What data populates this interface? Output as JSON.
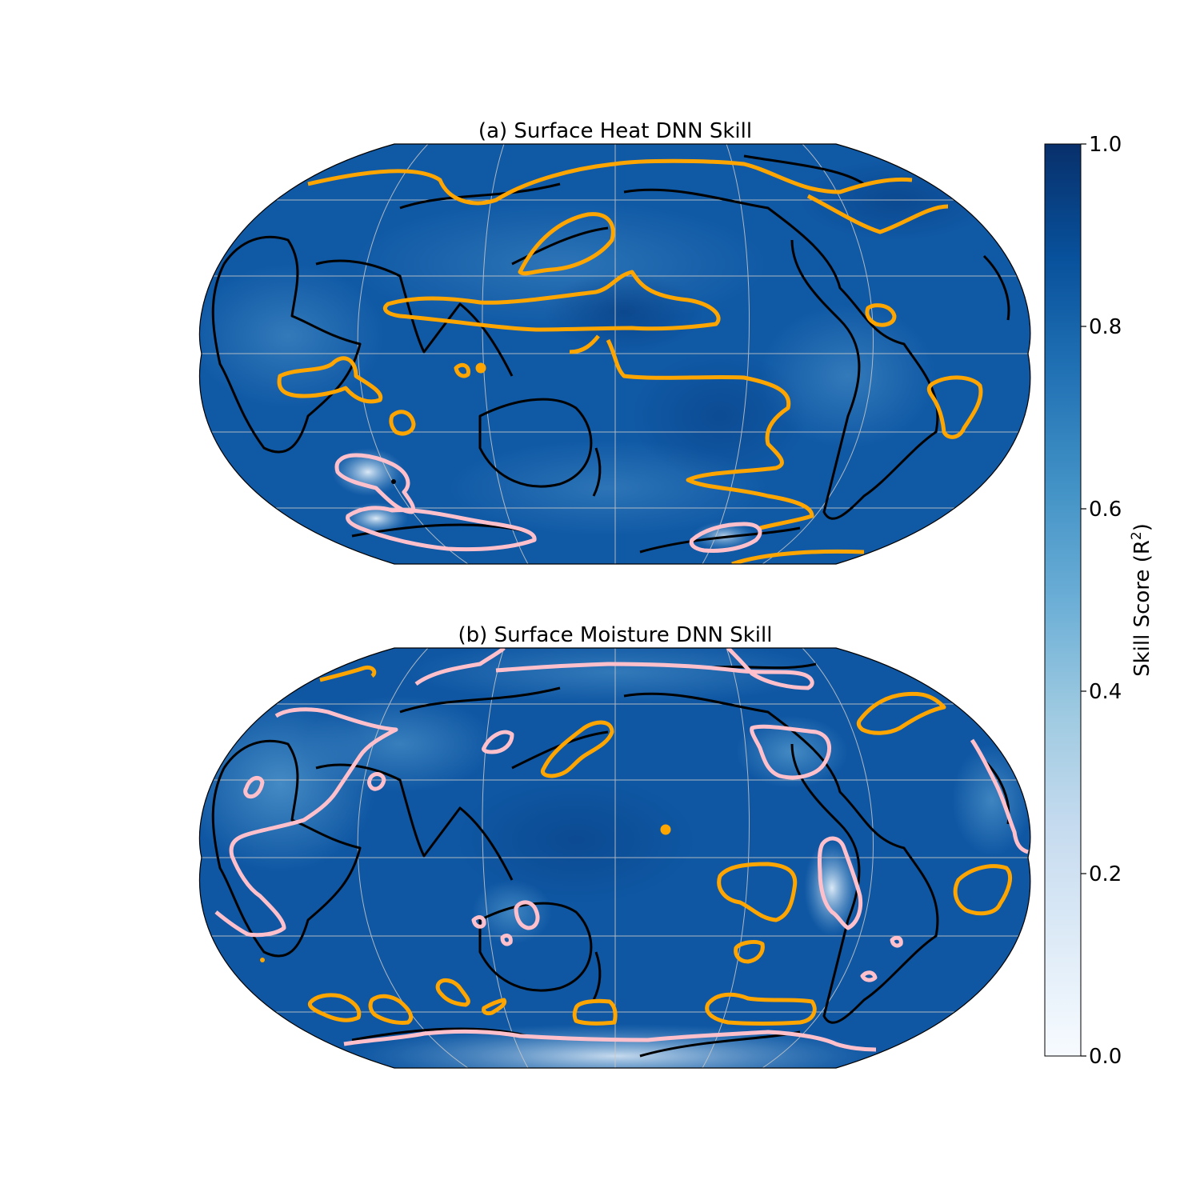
{
  "panels": [
    {
      "title": "(a) Surface Heat DNN Skill",
      "variable": "surface heat",
      "base_skill_color": "#1059a5"
    },
    {
      "title": "(b) Surface Moisture DNN Skill",
      "variable": "surface moisture",
      "base_skill_color": "#0f57a3"
    }
  ],
  "colorbar": {
    "label_main": "Skill Score (R",
    "label_sup": "2",
    "label_end": ")",
    "min": 0.0,
    "max": 1.0,
    "colormap": "Blues",
    "ticks": [
      "0.0",
      "0.2",
      "0.4",
      "0.6",
      "0.8",
      "1.0"
    ],
    "stops": [
      "#f7fbff",
      "#deebf7",
      "#c6dbef",
      "#9ecae1",
      "#6baed6",
      "#4292c6",
      "#2171b5",
      "#08519c",
      "#08306b"
    ]
  },
  "contour_colors": {
    "high_skill": "#ffa500",
    "low_skill": "#ffc0cb",
    "coastline": "#000000",
    "gridlines": "#c0c0c0"
  }
}
